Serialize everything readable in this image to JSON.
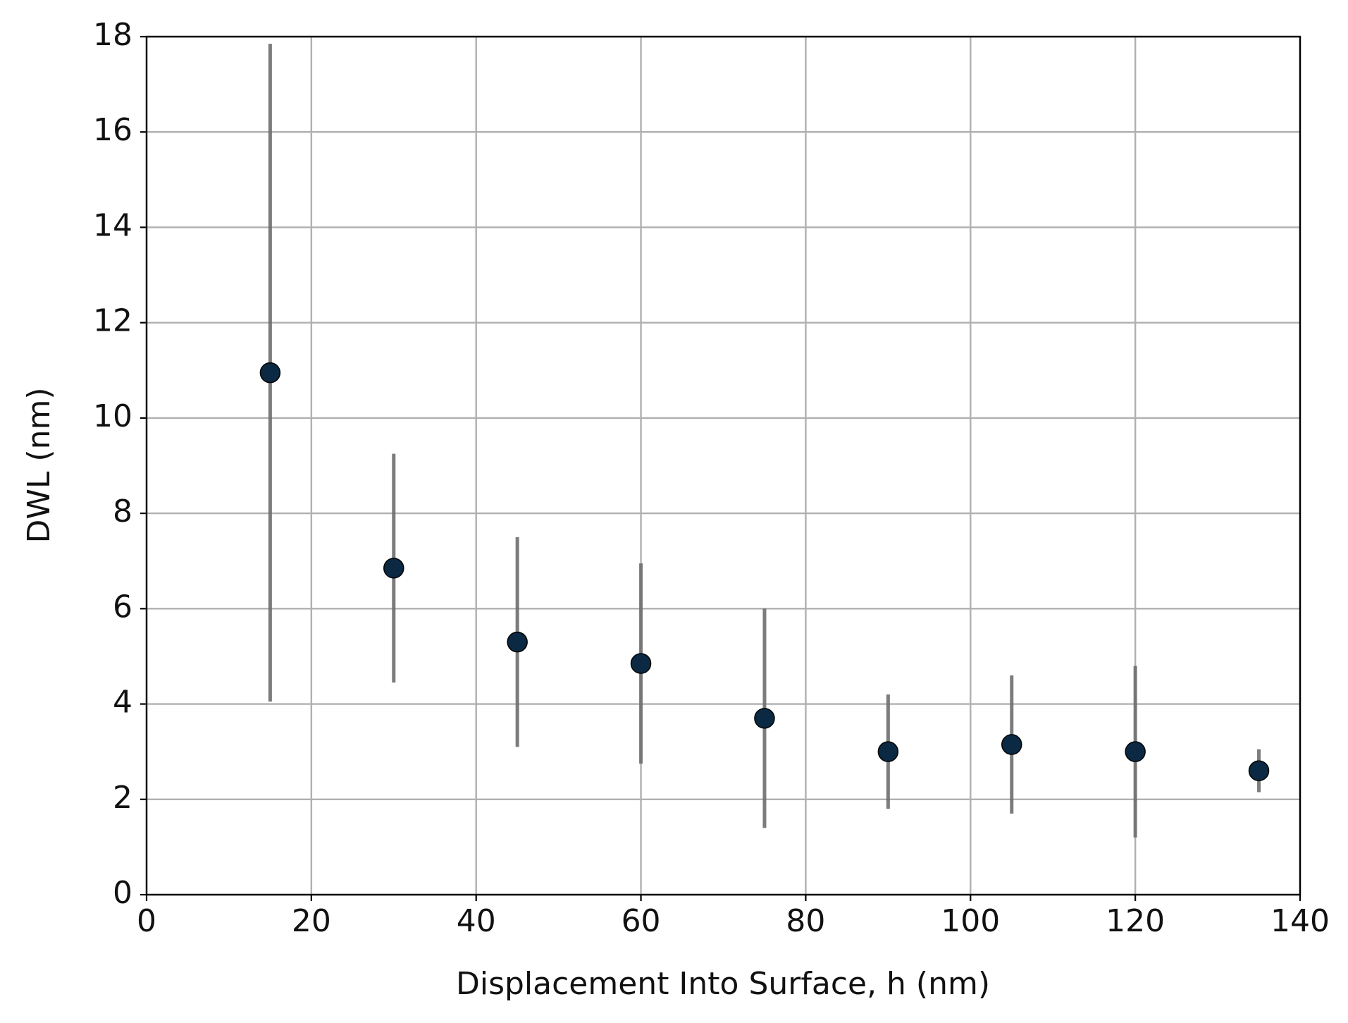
{
  "chart_data": {
    "type": "scatter",
    "xlabel": "Displacement Into Surface, h (nm)",
    "ylabel": "DWL (nm)",
    "x": [
      15,
      30,
      45,
      60,
      75,
      90,
      105,
      120,
      135
    ],
    "series": [
      {
        "color": "#0b2942",
        "error_color": "#6e6e6e",
        "values": [
          10.95,
          6.85,
          5.3,
          4.85,
          3.7,
          3.0,
          3.15,
          3.0,
          2.6
        ],
        "errors": [
          6.9,
          2.4,
          2.2,
          2.1,
          2.3,
          1.2,
          1.45,
          1.8,
          0.45
        ]
      }
    ],
    "xlim": [
      0,
      140
    ],
    "xticks": [
      0,
      20,
      40,
      60,
      80,
      100,
      120,
      140
    ],
    "ylim": [
      0,
      18
    ],
    "yticks": [
      0,
      2,
      4,
      6,
      8,
      10,
      12,
      14,
      16,
      18
    ],
    "grid": true
  }
}
